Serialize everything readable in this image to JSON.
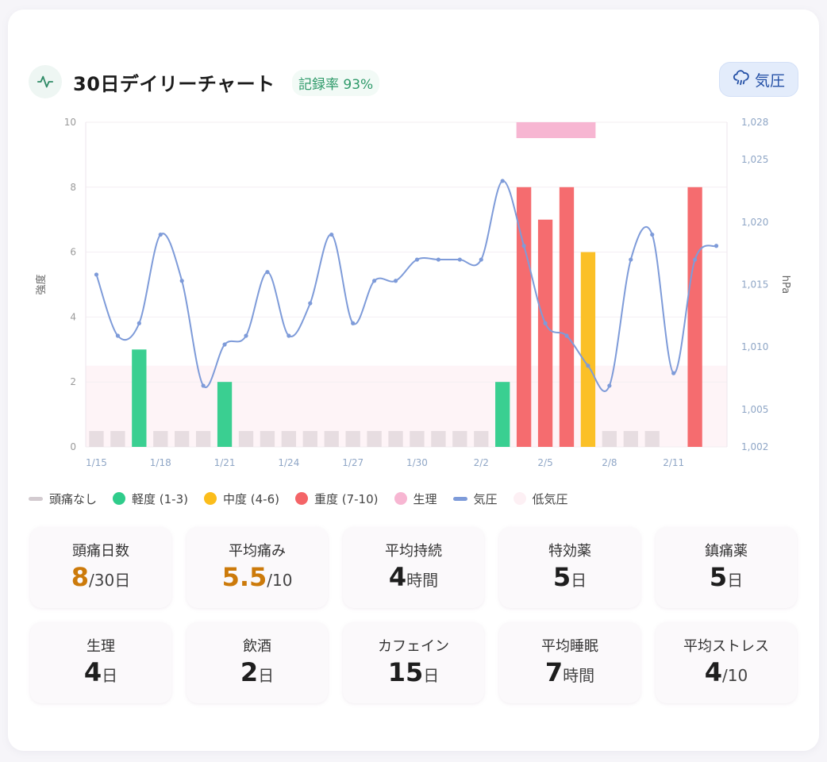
{
  "header": {
    "title": "30日デイリーチャート",
    "rate_badge": "記録率 93%",
    "pressure_button": "気圧"
  },
  "icons": {
    "header": "activity-pulse-icon",
    "pressure": "cloud-rain-icon"
  },
  "colors": {
    "none": "#d3cbd0",
    "mild": "#2fcc8b",
    "moderate": "#fbbd1b",
    "severe": "#f46467",
    "period": "#f7b6d2",
    "pressure": "#7e9bd9",
    "low_pressure": "#fdf0f4",
    "accent_value": "#cc7a0a"
  },
  "chart_data": {
    "type": "bar",
    "ylabel": "強度",
    "y2label": "hPa",
    "ylim": [
      0,
      10
    ],
    "y2lim": [
      1002,
      1028
    ],
    "y_ticks": [
      "0",
      "2",
      "4",
      "6",
      "8",
      "10"
    ],
    "y2_ticks": [
      "1,002",
      "1,005",
      "1,010",
      "1,015",
      "1,020",
      "1,025",
      "1,028"
    ],
    "y2_tick_values": [
      1002,
      1005,
      1010,
      1015,
      1020,
      1025,
      1028
    ],
    "x_tick_labels": [
      "1/15",
      "1/18",
      "1/21",
      "1/24",
      "1/27",
      "1/30",
      "2/2",
      "2/5",
      "2/8",
      "2/11"
    ],
    "x_tick_indices": [
      0,
      3,
      6,
      9,
      12,
      15,
      18,
      21,
      24,
      27
    ],
    "days": [
      "1/15",
      "1/16",
      "1/17",
      "1/18",
      "1/19",
      "1/20",
      "1/21",
      "1/22",
      "1/23",
      "1/24",
      "1/25",
      "1/26",
      "1/27",
      "1/28",
      "1/29",
      "1/30",
      "1/31",
      "2/1",
      "2/2",
      "2/3",
      "2/4",
      "2/5",
      "2/6",
      "2/7",
      "2/8",
      "2/9",
      "2/10",
      "2/11",
      "2/12",
      "2/13"
    ],
    "intensity": [
      0,
      0,
      3,
      0,
      0,
      0,
      2,
      0,
      0,
      0,
      0,
      0,
      0,
      0,
      0,
      0,
      0,
      0,
      0,
      2,
      8,
      7,
      8,
      6,
      0,
      0,
      0,
      null,
      8,
      null
    ],
    "severity": [
      "none",
      "none",
      "mild",
      "none",
      "none",
      "none",
      "mild",
      "none",
      "none",
      "none",
      "none",
      "none",
      "none",
      "none",
      "none",
      "none",
      "none",
      "none",
      "none",
      "mild",
      "severe",
      "severe",
      "severe",
      "moderate",
      "none",
      "none",
      "none",
      "missing",
      "severe",
      "missing"
    ],
    "pressure": [
      1015.8,
      1010.9,
      1011.9,
      1019.0,
      1015.3,
      1006.9,
      1010.2,
      1010.9,
      1016.0,
      1010.9,
      1013.5,
      1019.0,
      1011.9,
      1015.3,
      1015.3,
      1017.0,
      1017.0,
      1017.0,
      1017.0,
      1023.3,
      1018.1,
      1011.9,
      1010.9,
      1008.5,
      1006.9,
      1017.0,
      1019.0,
      1007.9,
      1017.0,
      1018.1
    ],
    "period_days": [
      "2/4",
      "2/5",
      "2/6",
      "2/7"
    ],
    "low_pressure_band_max": 1008.5,
    "legend": [
      {
        "key": "none",
        "label": "頭痛なし",
        "shape": "line"
      },
      {
        "key": "mild",
        "label": "軽度 (1-3)",
        "shape": "dot"
      },
      {
        "key": "moderate",
        "label": "中度 (4-6)",
        "shape": "dot"
      },
      {
        "key": "severe",
        "label": "重度 (7-10)",
        "shape": "dot"
      },
      {
        "key": "period",
        "label": "生理",
        "shape": "dot"
      },
      {
        "key": "pressure",
        "label": "気圧",
        "shape": "line"
      },
      {
        "key": "low_pressure",
        "label": "低気圧",
        "shape": "dot"
      }
    ]
  },
  "stats": [
    {
      "label": "頭痛日数",
      "value": "8",
      "unit": "/30日",
      "accent": true
    },
    {
      "label": "平均痛み",
      "value": "5.5",
      "unit": "/10",
      "accent": true
    },
    {
      "label": "平均持続",
      "value": "4",
      "unit": "時間",
      "accent": false
    },
    {
      "label": "特効薬",
      "value": "5",
      "unit": "日",
      "accent": false
    },
    {
      "label": "鎮痛薬",
      "value": "5",
      "unit": "日",
      "accent": false
    },
    {
      "label": "生理",
      "value": "4",
      "unit": "日",
      "accent": false
    },
    {
      "label": "飲酒",
      "value": "2",
      "unit": "日",
      "accent": false
    },
    {
      "label": "カフェイン",
      "value": "15",
      "unit": "日",
      "accent": false
    },
    {
      "label": "平均睡眠",
      "value": "7",
      "unit": "時間",
      "accent": false
    },
    {
      "label": "平均ストレス",
      "value": "4",
      "unit": "/10",
      "accent": false
    }
  ]
}
